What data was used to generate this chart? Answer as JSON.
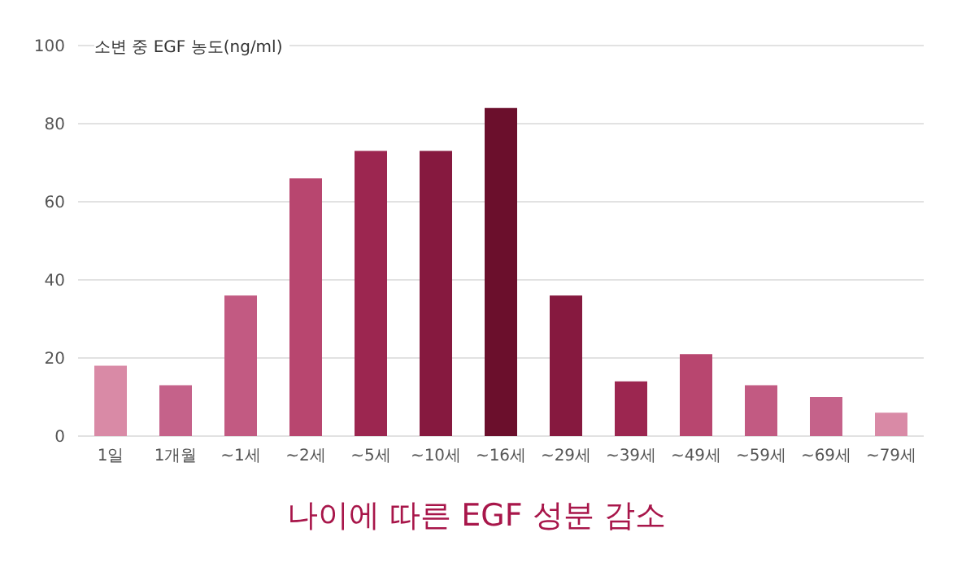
{
  "chart_data": {
    "type": "bar",
    "title": "나이에 따른 EGF 성분 감소",
    "ylabel": "소변 중 EGF 농도(ng/ml)",
    "categories": [
      "1일",
      "1개월",
      "~1세",
      "~2세",
      "~5세",
      "~10세",
      "~16세",
      "~29세",
      "~39세",
      "~49세",
      "~59세",
      "~69세",
      "~79세"
    ],
    "values": [
      18,
      13,
      36,
      66,
      73,
      73,
      84,
      36,
      14,
      21,
      13,
      10,
      6
    ],
    "colors": [
      "#d98aa6",
      "#c5628a",
      "#c25a82",
      "#b8466f",
      "#9c2650",
      "#86193f",
      "#6b0f2c",
      "#86193f",
      "#9c2650",
      "#b8466f",
      "#c25a82",
      "#c5628a",
      "#d98aa6"
    ],
    "ylim": [
      0,
      100
    ],
    "yticks": [
      0,
      20,
      40,
      60,
      80,
      100
    ],
    "grid": "y"
  }
}
